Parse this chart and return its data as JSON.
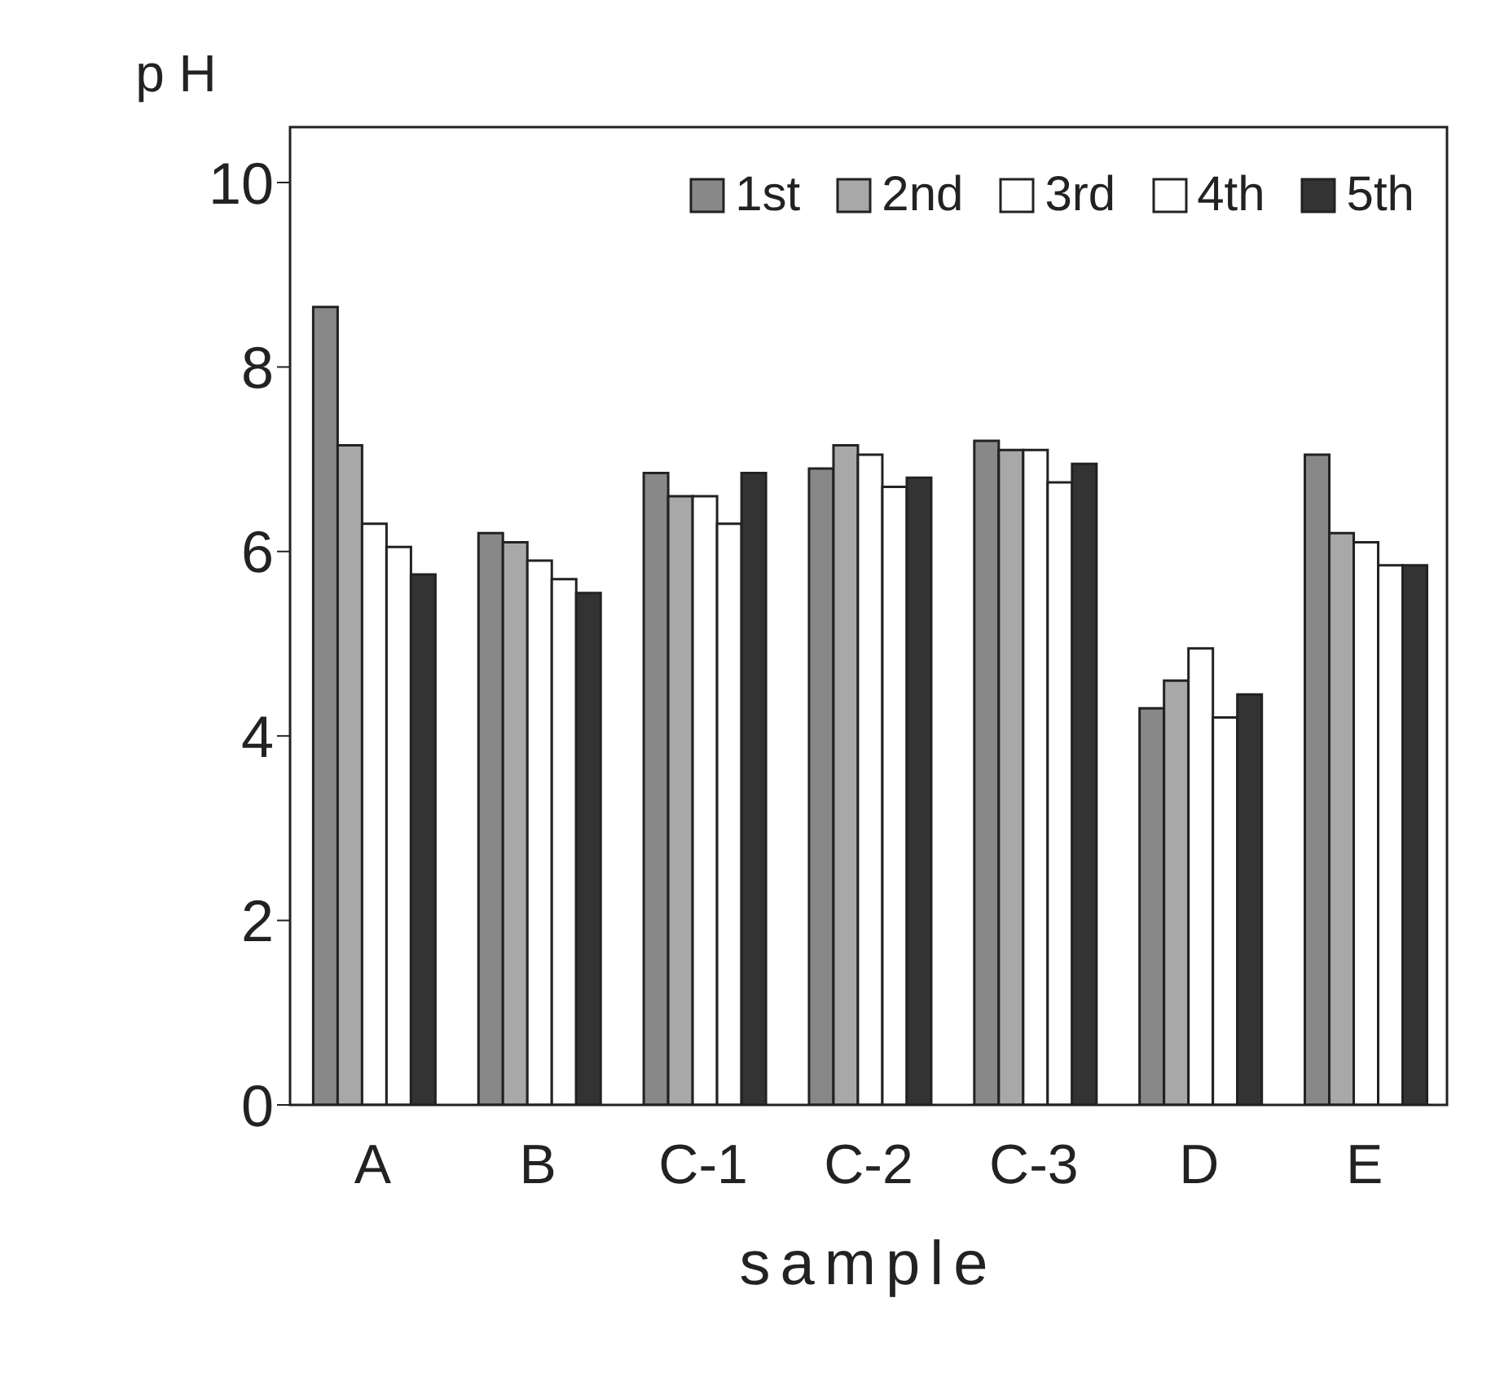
{
  "chart_data": {
    "type": "bar",
    "ylabel": "p H",
    "xlabel": "sample",
    "categories": [
      "A",
      "B",
      "C-1",
      "C-2",
      "C-3",
      "D",
      "E"
    ],
    "series": [
      {
        "name": "1st",
        "color": "#888888",
        "values": [
          8.65,
          6.2,
          6.85,
          6.9,
          7.2,
          4.3,
          7.05
        ]
      },
      {
        "name": "2nd",
        "color": "#a8a8a8",
        "values": [
          7.15,
          6.1,
          6.6,
          7.15,
          7.1,
          4.6,
          6.2
        ]
      },
      {
        "name": "3rd",
        "color": "#ffffff",
        "values": [
          6.3,
          5.9,
          6.6,
          7.05,
          7.1,
          4.95,
          6.1
        ]
      },
      {
        "name": "4th",
        "color": "#ffffff",
        "values": [
          6.05,
          5.7,
          6.3,
          6.7,
          6.75,
          4.2,
          5.85
        ]
      },
      {
        "name": "5th",
        "color": "#333333",
        "values": [
          5.75,
          5.55,
          6.85,
          6.8,
          6.95,
          4.45,
          5.85
        ]
      }
    ],
    "ylim": [
      0,
      10
    ],
    "yticks": [
      0,
      2,
      4,
      6,
      8,
      10
    ],
    "legend": "top right"
  }
}
